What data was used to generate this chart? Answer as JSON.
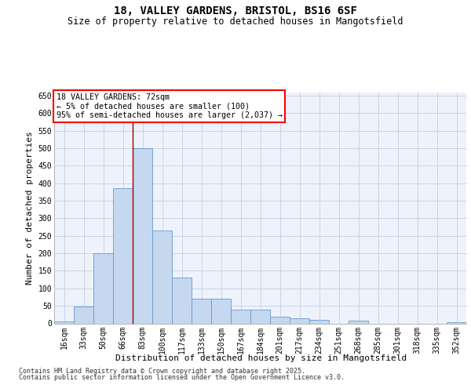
{
  "title_line1": "18, VALLEY GARDENS, BRISTOL, BS16 6SF",
  "title_line2": "Size of property relative to detached houses in Mangotsfield",
  "xlabel": "Distribution of detached houses by size in Mangotsfield",
  "ylabel": "Number of detached properties",
  "footnote_line1": "Contains HM Land Registry data © Crown copyright and database right 2025.",
  "footnote_line2": "Contains public sector information licensed under the Open Government Licence v3.0.",
  "annotation_line1": "18 VALLEY GARDENS: 72sqm",
  "annotation_line2": "← 5% of detached houses are smaller (100)",
  "annotation_line3": "95% of semi-detached houses are larger (2,037) →",
  "bar_color": "#c5d8ef",
  "bar_edge_color": "#6699cc",
  "vline_color": "#990000",
  "grid_color": "#c8d4e8",
  "background_color": "#eef2fa",
  "categories": [
    "16sqm",
    "33sqm",
    "50sqm",
    "66sqm",
    "83sqm",
    "100sqm",
    "117sqm",
    "133sqm",
    "150sqm",
    "167sqm",
    "184sqm",
    "201sqm",
    "217sqm",
    "234sqm",
    "251sqm",
    "268sqm",
    "285sqm",
    "301sqm",
    "318sqm",
    "335sqm",
    "352sqm"
  ],
  "bar_values": [
    5,
    48,
    200,
    385,
    500,
    265,
    130,
    70,
    70,
    40,
    40,
    20,
    15,
    10,
    0,
    8,
    0,
    0,
    0,
    0,
    4
  ],
  "vline_x_pos": 3.5,
  "ylim": [
    0,
    660
  ],
  "yticks": [
    0,
    50,
    100,
    150,
    200,
    250,
    300,
    350,
    400,
    450,
    500,
    550,
    600,
    650
  ]
}
